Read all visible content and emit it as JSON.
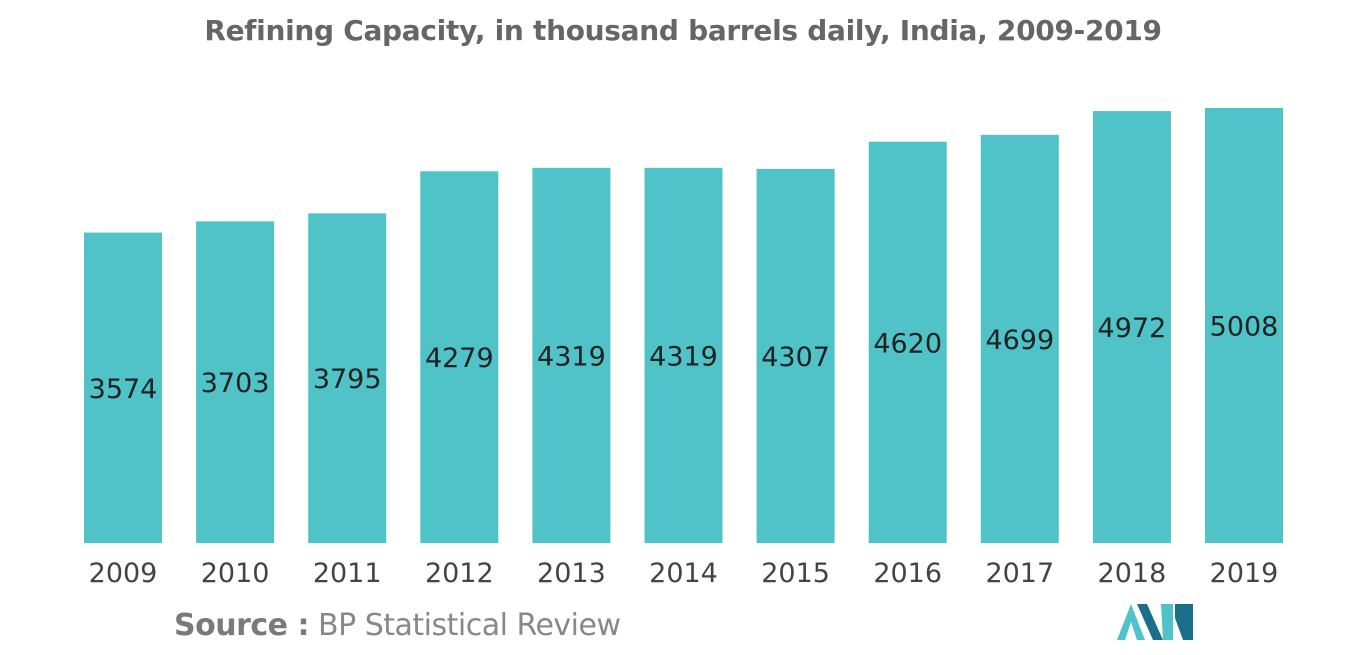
{
  "chart_data": {
    "type": "bar",
    "title": "Refining Capacity, in thousand barrels daily, India, 2009-2019",
    "categories": [
      "2009",
      "2010",
      "2011",
      "2012",
      "2013",
      "2014",
      "2015",
      "2016",
      "2017",
      "2018",
      "2019"
    ],
    "values": [
      3574,
      3703,
      3795,
      4279,
      4319,
      4319,
      4307,
      4620,
      4699,
      4972,
      5008
    ],
    "xlabel": "",
    "ylabel": "",
    "ylim": [
      0,
      5008
    ],
    "grid": false,
    "legend": "none",
    "bar_color": "#4fc3c7",
    "data_label_position": "inside-center"
  },
  "source": {
    "label": "Source :",
    "text": "BP Statistical Review"
  },
  "colors": {
    "bar": "#4fc3c7",
    "label_text": "#222222",
    "tick_text": "#444444",
    "logo_dark": "#1b6f8a",
    "logo_light": "#4fc3c7"
  }
}
